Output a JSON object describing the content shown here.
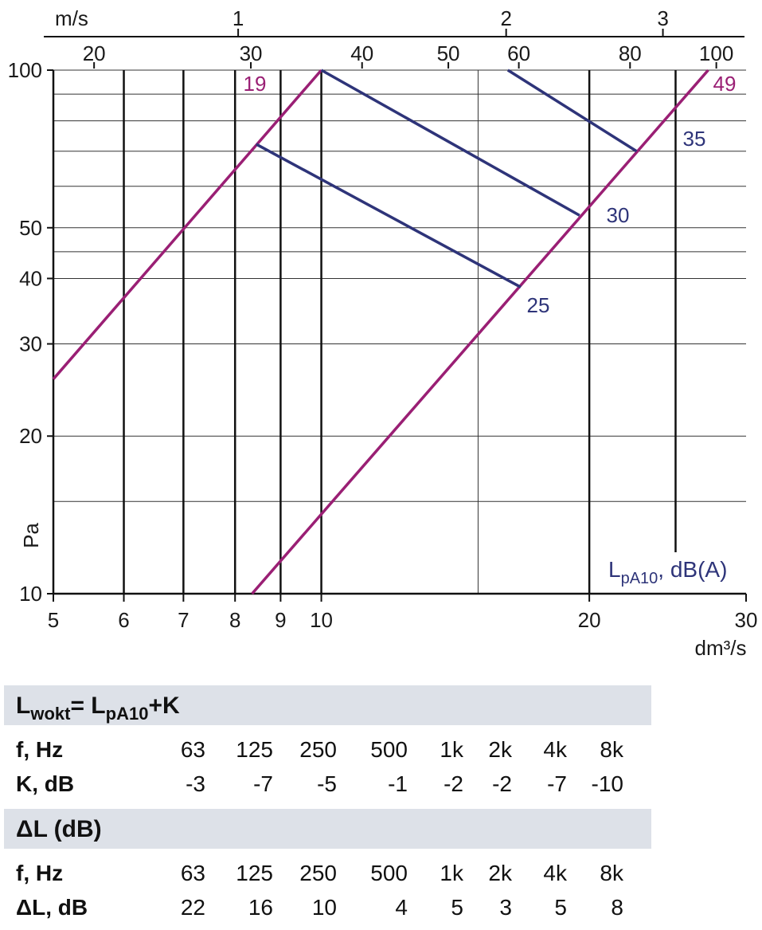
{
  "chart_data": {
    "type": "line",
    "x_label": "dm³/s",
    "y_label": "Pa",
    "xscale": "log",
    "yscale": "log",
    "xlim": [
      5,
      30
    ],
    "ylim": [
      10,
      100
    ],
    "xticks": [
      5,
      6,
      7,
      8,
      9,
      10,
      20,
      30
    ],
    "yticks": [
      10,
      20,
      30,
      40,
      50,
      100
    ],
    "xgrid_thin": [
      15
    ],
    "xgrid_thick": [
      25
    ],
    "ygrid_minor": [
      15,
      45,
      60,
      70,
      80,
      90
    ],
    "x2_label": "m/s",
    "x2lim": [
      0.62,
      3.72
    ],
    "x2ticks": [
      1,
      2,
      3
    ],
    "x3lim": [
      18,
      108
    ],
    "x3ticks": [
      20,
      30,
      40,
      50,
      60,
      80,
      100
    ],
    "legend_title": [
      {
        "text": "L"
      },
      {
        "text": "pA10",
        "sub": true
      },
      {
        "text": ", dB(A)"
      }
    ],
    "series": [
      {
        "name": "19",
        "color": "#9a1f74",
        "x": [
          5,
          10
        ],
        "values": [
          25.7,
          100
        ]
      },
      {
        "name": "49",
        "color": "#9a1f74",
        "x": [
          8.36,
          27.2
        ],
        "values": [
          10,
          100
        ]
      },
      {
        "name": "25",
        "color": "#2e3479",
        "x": [
          8.45,
          16.75
        ],
        "values": [
          72.2,
          38.5
        ]
      },
      {
        "name": "30",
        "color": "#2e3479",
        "x": [
          10,
          19.5
        ],
        "values": [
          100,
          52.8
        ]
      },
      {
        "name": "35",
        "color": "#2e3479",
        "x": [
          16.2,
          22.6
        ],
        "values": [
          100,
          70
        ]
      }
    ]
  },
  "tables": [
    {
      "title": [
        {
          "text": "L"
        },
        {
          "text": "wokt",
          "sub": true
        },
        {
          "text": "= L"
        },
        {
          "text": "pA10",
          "sub": true
        },
        {
          "text": "+K"
        }
      ],
      "rows": [
        [
          "f, Hz",
          63,
          125,
          250,
          500,
          "1k",
          "2k",
          "4k",
          "8k"
        ],
        [
          "K, dB",
          -3,
          -7,
          -5,
          -1,
          -2,
          -2,
          -7,
          -10
        ]
      ]
    },
    {
      "title": [
        {
          "text": "ΔL (dB)"
        }
      ],
      "rows": [
        [
          "f, Hz",
          63,
          125,
          250,
          500,
          "1k",
          "2k",
          "4k",
          "8k"
        ],
        [
          "ΔL, dB",
          22,
          16,
          10,
          4,
          5,
          3,
          5,
          8
        ]
      ]
    }
  ]
}
